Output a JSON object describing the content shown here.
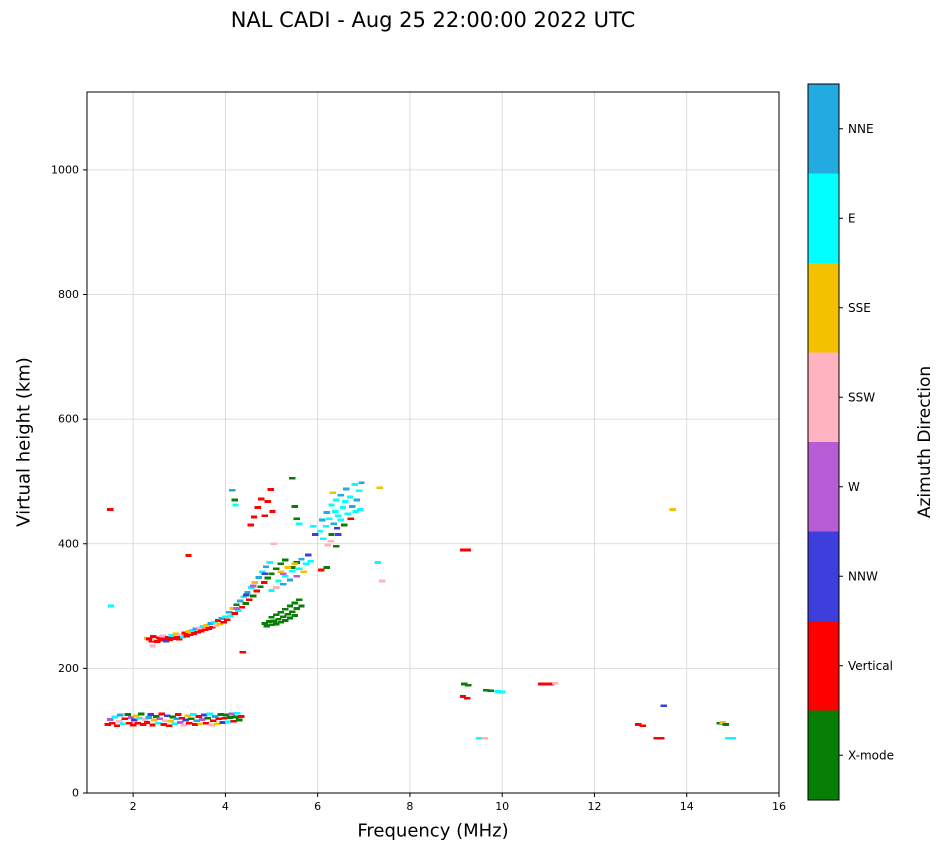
{
  "title": "NAL CADI - Aug 25 22:00:00 2022 UTC",
  "chart_data": {
    "type": "scatter",
    "title": "NAL CADI - Aug 25 22:00:00 2022 UTC",
    "xlabel": "Frequency (MHz)",
    "ylabel": "Virtual height (km)",
    "xlim": [
      1,
      16
    ],
    "ylim": [
      0,
      1125
    ],
    "xticks": [
      2,
      4,
      6,
      8,
      10,
      12,
      14,
      16
    ],
    "yticks": [
      0,
      200,
      400,
      600,
      800,
      1000
    ],
    "grid": true,
    "marker": "horizontal-dash",
    "colorbar": {
      "label": "Azimuth Direction",
      "categories": [
        {
          "label": "NNE",
          "color": "#23AAE1"
        },
        {
          "label": "E",
          "color": "#00FFFF"
        },
        {
          "label": "SSE",
          "color": "#F2C200"
        },
        {
          "label": "SSW",
          "color": "#FFB3C1"
        },
        {
          "label": "W",
          "color": "#B85CD5"
        },
        {
          "label": "NNW",
          "color": "#3E3EDD"
        },
        {
          "label": "Vertical",
          "color": "#FF0000"
        },
        {
          "label": "X-mode",
          "color": "#077F07"
        }
      ]
    },
    "points": [
      [
        1.45,
        110,
        "Vertical"
      ],
      [
        1.5,
        118,
        "W"
      ],
      [
        1.55,
        112,
        "Vertical"
      ],
      [
        1.6,
        122,
        "E"
      ],
      [
        1.65,
        108,
        "Vertical"
      ],
      [
        1.7,
        115,
        "SSW"
      ],
      [
        1.72,
        125,
        "NNE"
      ],
      [
        1.78,
        111,
        "E"
      ],
      [
        1.82,
        119,
        "Vertical"
      ],
      [
        1.88,
        126,
        "X-mode"
      ],
      [
        1.92,
        112,
        "Vertical"
      ],
      [
        1.96,
        121,
        "W"
      ],
      [
        2.0,
        109,
        "Vertical"
      ],
      [
        2.02,
        117,
        "NNW"
      ],
      [
        2.06,
        124,
        "SSE"
      ],
      [
        2.1,
        112,
        "Vertical"
      ],
      [
        2.14,
        120,
        "E"
      ],
      [
        2.18,
        127,
        "X-mode"
      ],
      [
        2.22,
        110,
        "Vertical"
      ],
      [
        2.26,
        118,
        "SSW"
      ],
      [
        2.3,
        113,
        "Vertical"
      ],
      [
        2.34,
        121,
        "NNE"
      ],
      [
        2.38,
        126,
        "NNW"
      ],
      [
        2.42,
        109,
        "Vertical"
      ],
      [
        2.46,
        117,
        "SSE"
      ],
      [
        2.5,
        123,
        "X-mode"
      ],
      [
        2.54,
        112,
        "E"
      ],
      [
        2.58,
        119,
        "W"
      ],
      [
        2.62,
        127,
        "Vertical"
      ],
      [
        2.66,
        110,
        "Vertical"
      ],
      [
        2.7,
        116,
        "SSW"
      ],
      [
        2.74,
        124,
        "NNW"
      ],
      [
        2.78,
        108,
        "Vertical"
      ],
      [
        2.82,
        115,
        "SSE"
      ],
      [
        2.86,
        122,
        "X-mode"
      ],
      [
        2.9,
        111,
        "E"
      ],
      [
        2.94,
        119,
        "NNE"
      ],
      [
        2.98,
        126,
        "Vertical"
      ],
      [
        3.02,
        113,
        "W"
      ],
      [
        3.06,
        120,
        "Vertical"
      ],
      [
        3.1,
        109,
        "SSW"
      ],
      [
        3.14,
        117,
        "NNW"
      ],
      [
        3.18,
        124,
        "SSE"
      ],
      [
        3.22,
        112,
        "Vertical"
      ],
      [
        3.26,
        119,
        "X-mode"
      ],
      [
        3.3,
        126,
        "E"
      ],
      [
        3.34,
        110,
        "Vertical"
      ],
      [
        3.38,
        116,
        "NNE"
      ],
      [
        3.42,
        123,
        "Vertical"
      ],
      [
        3.46,
        111,
        "SSE"
      ],
      [
        3.5,
        118,
        "W"
      ],
      [
        3.54,
        125,
        "NNW"
      ],
      [
        3.58,
        112,
        "Vertical"
      ],
      [
        3.62,
        120,
        "X-mode"
      ],
      [
        3.66,
        127,
        "E"
      ],
      [
        3.7,
        109,
        "SSW"
      ],
      [
        3.74,
        116,
        "Vertical"
      ],
      [
        3.78,
        123,
        "NNE"
      ],
      [
        3.82,
        111,
        "SSE"
      ],
      [
        3.86,
        119,
        "Vertical"
      ],
      [
        3.9,
        126,
        "X-mode"
      ],
      [
        3.94,
        113,
        "NNW"
      ],
      [
        3.98,
        120,
        "Vertical"
      ],
      [
        4.02,
        125,
        "X-mode"
      ],
      [
        4.06,
        114,
        "E"
      ],
      [
        4.1,
        121,
        "X-mode"
      ],
      [
        4.14,
        127,
        "W"
      ],
      [
        4.18,
        115,
        "Vertical"
      ],
      [
        4.22,
        122,
        "X-mode"
      ],
      [
        4.26,
        128,
        "E"
      ],
      [
        4.3,
        117,
        "X-mode"
      ],
      [
        4.34,
        123,
        "Vertical"
      ],
      [
        1.5,
        455,
        "Vertical"
      ],
      [
        1.52,
        300,
        "E"
      ],
      [
        2.3,
        248,
        "SSE"
      ],
      [
        2.42,
        236,
        "SSW"
      ],
      [
        3.2,
        381,
        "Vertical"
      ],
      [
        4.38,
        226,
        "Vertical"
      ],
      [
        2.35,
        247,
        "Vertical"
      ],
      [
        2.4,
        244,
        "Vertical"
      ],
      [
        2.44,
        251,
        "Vertical"
      ],
      [
        2.48,
        246,
        "SSW"
      ],
      [
        2.52,
        243,
        "Vertical"
      ],
      [
        2.56,
        249,
        "Vertical"
      ],
      [
        2.6,
        245,
        "Vertical"
      ],
      [
        2.64,
        252,
        "SSW"
      ],
      [
        2.68,
        247,
        "Vertical"
      ],
      [
        2.72,
        244,
        "NNW"
      ],
      [
        2.76,
        250,
        "Vertical"
      ],
      [
        2.8,
        246,
        "Vertical"
      ],
      [
        2.84,
        253,
        "E"
      ],
      [
        2.88,
        248,
        "Vertical"
      ],
      [
        2.92,
        255,
        "SSE"
      ],
      [
        2.96,
        250,
        "Vertical"
      ],
      [
        3.0,
        247,
        "Vertical"
      ],
      [
        3.04,
        254,
        "SSW"
      ],
      [
        3.08,
        250,
        "E"
      ],
      [
        3.12,
        257,
        "Vertical"
      ],
      [
        3.16,
        252,
        "Vertical"
      ],
      [
        3.2,
        259,
        "SSE"
      ],
      [
        3.24,
        254,
        "Vertical"
      ],
      [
        3.28,
        261,
        "E"
      ],
      [
        3.32,
        256,
        "Vertical"
      ],
      [
        3.36,
        263,
        "NNE"
      ],
      [
        3.4,
        258,
        "Vertical"
      ],
      [
        3.44,
        265,
        "SSW"
      ],
      [
        3.48,
        260,
        "Vertical"
      ],
      [
        3.52,
        267,
        "E"
      ],
      [
        3.56,
        262,
        "Vertical"
      ],
      [
        3.6,
        269,
        "SSE"
      ],
      [
        3.64,
        264,
        "Vertical"
      ],
      [
        3.68,
        272,
        "NNE"
      ],
      [
        3.72,
        266,
        "Vertical"
      ],
      [
        3.76,
        274,
        "E"
      ],
      [
        3.8,
        269,
        "SSW"
      ],
      [
        3.84,
        277,
        "Vertical"
      ],
      [
        3.88,
        271,
        "SSE"
      ],
      [
        3.92,
        280,
        "NNE"
      ],
      [
        3.96,
        274,
        "Vertical"
      ],
      [
        4.0,
        283,
        "E"
      ],
      [
        4.04,
        278,
        "Vertical"
      ],
      [
        4.08,
        290,
        "NNE"
      ],
      [
        4.12,
        284,
        "E"
      ],
      [
        4.16,
        296,
        "SSE"
      ],
      [
        4.2,
        288,
        "Vertical"
      ],
      [
        4.24,
        302,
        "X-mode"
      ],
      [
        4.28,
        293,
        "E"
      ],
      [
        4.32,
        308,
        "NNE"
      ],
      [
        4.36,
        298,
        "Vertical"
      ],
      [
        4.4,
        315,
        "E"
      ],
      [
        4.44,
        304,
        "X-mode"
      ],
      [
        4.48,
        322,
        "NNE"
      ],
      [
        4.52,
        310,
        "Vertical"
      ],
      [
        4.56,
        330,
        "E"
      ],
      [
        4.6,
        316,
        "X-mode"
      ],
      [
        4.64,
        338,
        "SSE"
      ],
      [
        4.68,
        324,
        "Vertical"
      ],
      [
        4.72,
        346,
        "NNE"
      ],
      [
        4.76,
        331,
        "X-mode"
      ],
      [
        4.8,
        355,
        "E"
      ],
      [
        4.84,
        338,
        "Vertical"
      ],
      [
        4.88,
        363,
        "NNE"
      ],
      [
        4.92,
        345,
        "X-mode"
      ],
      [
        4.96,
        370,
        "E"
      ],
      [
        4.25,
        296,
        "W"
      ],
      [
        4.45,
        318,
        "NNW"
      ],
      [
        4.6,
        332,
        "W"
      ],
      [
        4.85,
        352,
        "NNW"
      ],
      [
        5.25,
        352,
        "W"
      ],
      [
        4.85,
        272,
        "X-mode"
      ],
      [
        4.9,
        268,
        "X-mode"
      ],
      [
        4.95,
        275,
        "X-mode"
      ],
      [
        5.0,
        270,
        "X-mode"
      ],
      [
        5.0,
        282,
        "X-mode"
      ],
      [
        5.05,
        276,
        "X-mode"
      ],
      [
        5.1,
        271,
        "X-mode"
      ],
      [
        5.1,
        286,
        "X-mode"
      ],
      [
        5.15,
        279,
        "X-mode"
      ],
      [
        5.2,
        274,
        "X-mode"
      ],
      [
        5.2,
        290,
        "X-mode"
      ],
      [
        5.25,
        283,
        "X-mode"
      ],
      [
        5.3,
        277,
        "X-mode"
      ],
      [
        5.3,
        295,
        "X-mode"
      ],
      [
        5.35,
        287,
        "X-mode"
      ],
      [
        5.4,
        281,
        "X-mode"
      ],
      [
        5.4,
        300,
        "X-mode"
      ],
      [
        5.45,
        291,
        "X-mode"
      ],
      [
        5.5,
        285,
        "X-mode"
      ],
      [
        5.5,
        305,
        "X-mode"
      ],
      [
        5.55,
        296,
        "X-mode"
      ],
      [
        5.6,
        310,
        "X-mode"
      ],
      [
        5.65,
        300,
        "X-mode"
      ],
      [
        5.0,
        352,
        "X-mode"
      ],
      [
        5.1,
        360,
        "X-mode"
      ],
      [
        5.2,
        368,
        "X-mode"
      ],
      [
        5.3,
        374,
        "X-mode"
      ],
      [
        5.45,
        362,
        "X-mode"
      ],
      [
        5.55,
        370,
        "X-mode"
      ],
      [
        5.0,
        325,
        "E"
      ],
      [
        5.05,
        400,
        "SSW"
      ],
      [
        5.1,
        330,
        "SSW"
      ],
      [
        5.15,
        340,
        "E"
      ],
      [
        5.2,
        355,
        "SSE"
      ],
      [
        5.25,
        335,
        "NNE"
      ],
      [
        5.3,
        348,
        "E"
      ],
      [
        5.35,
        362,
        "SSE"
      ],
      [
        5.4,
        342,
        "NNE"
      ],
      [
        5.45,
        356,
        "E"
      ],
      [
        5.5,
        368,
        "SSE"
      ],
      [
        5.55,
        348,
        "W"
      ],
      [
        5.6,
        360,
        "E"
      ],
      [
        5.65,
        375,
        "NNE"
      ],
      [
        5.7,
        355,
        "SSE"
      ],
      [
        5.75,
        368,
        "E"
      ],
      [
        5.8,
        382,
        "NNW"
      ],
      [
        5.85,
        372,
        "E"
      ],
      [
        5.9,
        428,
        "E"
      ],
      [
        5.95,
        415,
        "NNW"
      ],
      [
        4.55,
        430,
        "Vertical"
      ],
      [
        4.62,
        443,
        "Vertical"
      ],
      [
        4.7,
        458,
        "Vertical"
      ],
      [
        4.78,
        472,
        "Vertical"
      ],
      [
        4.85,
        445,
        "Vertical"
      ],
      [
        4.92,
        468,
        "Vertical"
      ],
      [
        4.98,
        487,
        "Vertical"
      ],
      [
        5.02,
        452,
        "Vertical"
      ],
      [
        4.15,
        486,
        "NNE"
      ],
      [
        4.2,
        470,
        "X-mode"
      ],
      [
        4.22,
        462,
        "E"
      ],
      [
        5.45,
        505,
        "X-mode"
      ],
      [
        5.5,
        460,
        "X-mode"
      ],
      [
        5.55,
        440,
        "X-mode"
      ],
      [
        5.6,
        432,
        "E"
      ],
      [
        6.05,
        420,
        "E"
      ],
      [
        6.1,
        438,
        "NNE"
      ],
      [
        6.12,
        408,
        "E"
      ],
      [
        6.18,
        428,
        "E"
      ],
      [
        6.2,
        450,
        "NNE"
      ],
      [
        6.22,
        398,
        "SSW"
      ],
      [
        6.25,
        440,
        "E"
      ],
      [
        6.3,
        462,
        "E"
      ],
      [
        6.3,
        415,
        "X-mode"
      ],
      [
        6.35,
        432,
        "NNE"
      ],
      [
        6.38,
        452,
        "E"
      ],
      [
        6.4,
        470,
        "E"
      ],
      [
        6.42,
        425,
        "NNW"
      ],
      [
        6.45,
        445,
        "E"
      ],
      [
        6.5,
        478,
        "NNE"
      ],
      [
        6.5,
        438,
        "E"
      ],
      [
        6.55,
        458,
        "E"
      ],
      [
        6.58,
        430,
        "X-mode"
      ],
      [
        6.6,
        468,
        "E"
      ],
      [
        6.62,
        488,
        "NNE"
      ],
      [
        6.65,
        448,
        "E"
      ],
      [
        6.7,
        475,
        "E"
      ],
      [
        6.72,
        440,
        "Vertical"
      ],
      [
        6.75,
        460,
        "NNE"
      ],
      [
        6.8,
        495,
        "E"
      ],
      [
        6.82,
        452,
        "E"
      ],
      [
        6.85,
        470,
        "NNE"
      ],
      [
        6.9,
        485,
        "E"
      ],
      [
        6.92,
        455,
        "E"
      ],
      [
        6.95,
        498,
        "NNE"
      ],
      [
        6.2,
        362,
        "X-mode"
      ],
      [
        6.4,
        396,
        "X-mode"
      ],
      [
        6.28,
        404,
        "SSW"
      ],
      [
        6.08,
        358,
        "Vertical"
      ],
      [
        6.45,
        415,
        "NNW"
      ],
      [
        6.33,
        482,
        "SSE"
      ],
      [
        7.3,
        370,
        "E"
      ],
      [
        7.35,
        490,
        "SSE"
      ],
      [
        7.4,
        340,
        "SSW"
      ],
      [
        9.15,
        390,
        "Vertical"
      ],
      [
        9.25,
        390,
        "Vertical"
      ],
      [
        9.18,
        175,
        "X-mode"
      ],
      [
        9.26,
        173,
        "X-mode"
      ],
      [
        9.15,
        155,
        "Vertical"
      ],
      [
        9.24,
        152,
        "Vertical"
      ],
      [
        9.65,
        165,
        "X-mode"
      ],
      [
        9.75,
        164,
        "X-mode"
      ],
      [
        9.9,
        163,
        "E"
      ],
      [
        10.0,
        162,
        "E"
      ],
      [
        10.85,
        175,
        "Vertical"
      ],
      [
        10.95,
        175,
        "Vertical"
      ],
      [
        11.05,
        175,
        "Vertical"
      ],
      [
        11.15,
        176,
        "SSW"
      ],
      [
        9.5,
        88,
        "E"
      ],
      [
        9.62,
        88,
        "SSW"
      ],
      [
        12.95,
        110,
        "Vertical"
      ],
      [
        13.05,
        108,
        "Vertical"
      ],
      [
        13.35,
        88,
        "Vertical"
      ],
      [
        13.45,
        88,
        "Vertical"
      ],
      [
        13.5,
        140,
        "NNW"
      ],
      [
        13.7,
        455,
        "SSE"
      ],
      [
        14.72,
        112,
        "X-mode"
      ],
      [
        14.78,
        113,
        "SSE"
      ],
      [
        14.85,
        110,
        "X-mode"
      ],
      [
        14.9,
        88,
        "E"
      ],
      [
        15.0,
        88,
        "E"
      ]
    ]
  }
}
